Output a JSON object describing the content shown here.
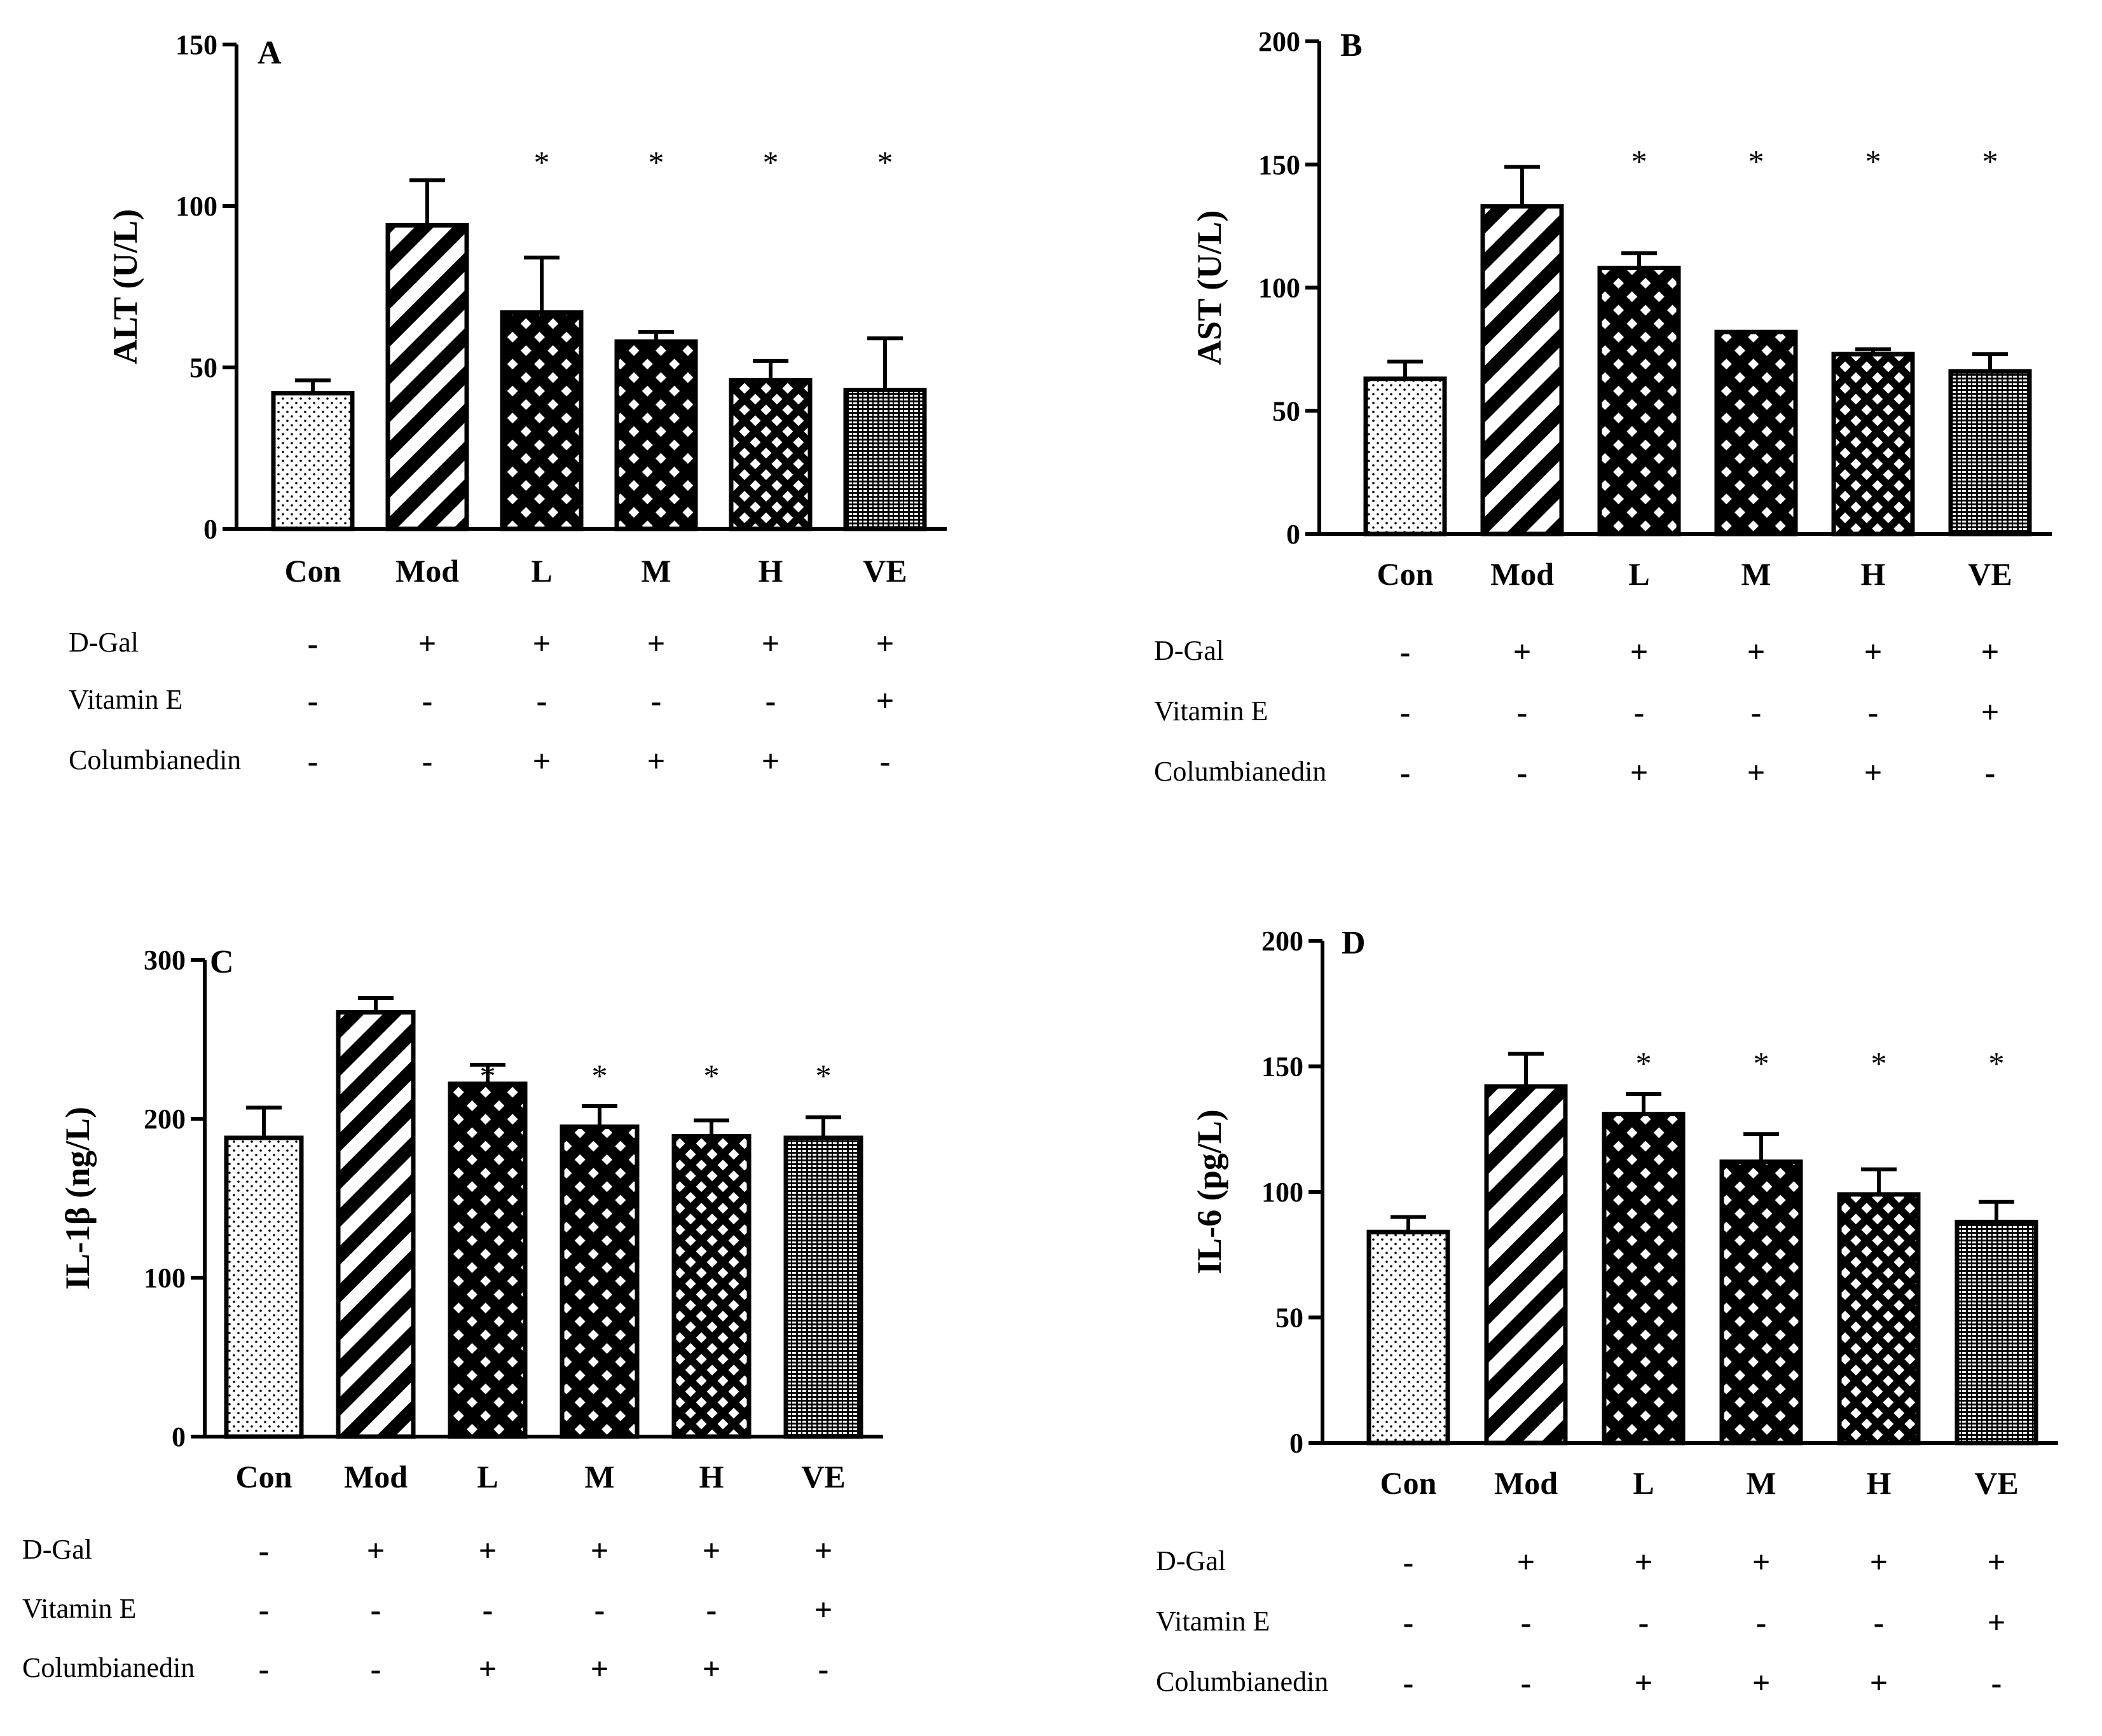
{
  "colors": {
    "ink": "#000000",
    "paper": "#ffffff"
  },
  "chart_data": [
    {
      "type": "bar",
      "panel": "A",
      "ylabel": "ALT (U/L)",
      "categories": [
        "Con",
        "Mod",
        "L",
        "M",
        "H",
        "VE"
      ],
      "values": [
        42,
        94,
        67,
        58,
        46,
        43
      ],
      "errors": [
        4,
        14,
        17,
        3,
        6,
        16
      ],
      "significance": [
        "",
        "",
        "*",
        "*",
        "*",
        "*"
      ],
      "ylim": [
        0,
        150
      ],
      "yticks": [
        0,
        50,
        100,
        150
      ],
      "patterns": [
        "dots",
        "diag",
        "cross",
        "cross",
        "cross-fine",
        "brick"
      ],
      "treatments": [
        {
          "label": "D-Gal",
          "signs": [
            "-",
            "+",
            "+",
            "+",
            "+",
            "+"
          ]
        },
        {
          "label": "Vitamin E",
          "signs": [
            "-",
            "-",
            "-",
            "-",
            "-",
            "+"
          ]
        },
        {
          "label": "Columbianedin",
          "signs": [
            "-",
            "-",
            "+",
            "+",
            "+",
            "-"
          ]
        }
      ]
    },
    {
      "type": "bar",
      "panel": "B",
      "ylabel": "AST (U/L)",
      "categories": [
        "Con",
        "Mod",
        "L",
        "M",
        "H",
        "VE"
      ],
      "values": [
        63,
        133,
        108,
        82,
        73,
        66
      ],
      "errors": [
        7,
        16,
        6,
        0,
        2,
        7
      ],
      "significance": [
        "",
        "",
        "*",
        "*",
        "*",
        "*"
      ],
      "ylim": [
        0,
        200
      ],
      "yticks": [
        0,
        50,
        100,
        150,
        200
      ],
      "patterns": [
        "dots",
        "diag",
        "cross",
        "cross",
        "cross-fine",
        "brick"
      ],
      "treatments": [
        {
          "label": "D-Gal",
          "signs": [
            "-",
            "+",
            "+",
            "+",
            "+",
            "+"
          ]
        },
        {
          "label": "Vitamin E",
          "signs": [
            "-",
            "-",
            "-",
            "-",
            "-",
            "+"
          ]
        },
        {
          "label": "Columbianedin",
          "signs": [
            "-",
            "-",
            "+",
            "+",
            "+",
            "-"
          ]
        }
      ]
    },
    {
      "type": "bar",
      "panel": "C",
      "ylabel": "IL-1β (ng/L)",
      "categories": [
        "Con",
        "Mod",
        "L",
        "M",
        "H",
        "VE"
      ],
      "values": [
        188,
        267,
        222,
        195,
        189,
        188
      ],
      "errors": [
        19,
        9,
        12,
        13,
        10,
        13
      ],
      "significance": [
        "",
        "",
        "*",
        "*",
        "*",
        "*"
      ],
      "ylim": [
        0,
        300
      ],
      "yticks": [
        0,
        100,
        200,
        300
      ],
      "patterns": [
        "dots",
        "diag",
        "cross",
        "cross",
        "cross-fine",
        "brick"
      ],
      "treatments": [
        {
          "label": "D-Gal",
          "signs": [
            "-",
            "+",
            "+",
            "+",
            "+",
            "+"
          ]
        },
        {
          "label": "Vitamin E",
          "signs": [
            "-",
            "-",
            "-",
            "-",
            "-",
            "+"
          ]
        },
        {
          "label": "Columbianedin",
          "signs": [
            "-",
            "-",
            "+",
            "+",
            "+",
            "-"
          ]
        }
      ]
    },
    {
      "type": "bar",
      "panel": "D",
      "ylabel": "IL-6 (pg/L)",
      "categories": [
        "Con",
        "Mod",
        "L",
        "M",
        "H",
        "VE"
      ],
      "values": [
        84,
        142,
        131,
        112,
        99,
        88
      ],
      "errors": [
        6,
        13,
        8,
        11,
        10,
        8
      ],
      "significance": [
        "",
        "",
        "*",
        "*",
        "*",
        "*"
      ],
      "ylim": [
        0,
        200
      ],
      "yticks": [
        0,
        50,
        100,
        150,
        200
      ],
      "patterns": [
        "dots",
        "diag",
        "cross",
        "cross",
        "cross-fine",
        "brick"
      ],
      "treatments": [
        {
          "label": "D-Gal",
          "signs": [
            "-",
            "+",
            "+",
            "+",
            "+",
            "+"
          ]
        },
        {
          "label": "Vitamin E",
          "signs": [
            "-",
            "-",
            "-",
            "-",
            "-",
            "+"
          ]
        },
        {
          "label": "Columbianedin",
          "signs": [
            "-",
            "-",
            "+",
            "+",
            "+",
            "-"
          ]
        }
      ]
    }
  ]
}
